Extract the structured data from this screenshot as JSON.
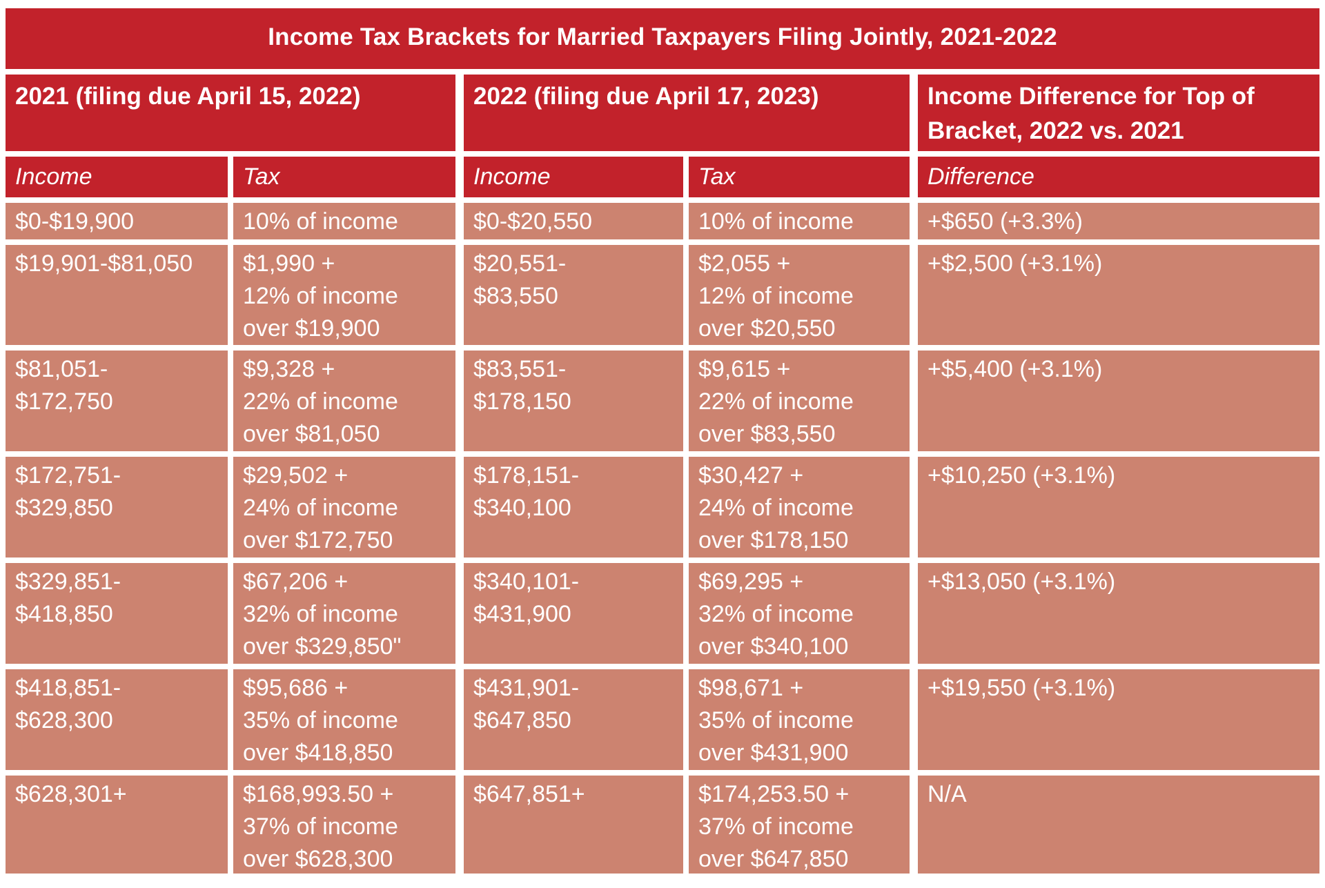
{
  "colors": {
    "header_red": "#C2222B",
    "cell_salmon": "#CC8370",
    "text_white": "#FFFFFF",
    "page_background": "#FFFFFF"
  },
  "chart_data": {
    "type": "table",
    "title": "Income Tax Brackets for Married Taxpayers Filing Jointly, 2021-2022",
    "column_groups": [
      {
        "label": "2021 (filing due April 15, 2022)",
        "span": 2
      },
      {
        "label": "2022 (filing due April 17, 2023)",
        "span": 2
      },
      {
        "label": "Income Difference for Top of Bracket, 2022 vs. 2021",
        "span": 1
      }
    ],
    "columns": [
      "Income",
      "Tax",
      "Income",
      "Tax",
      "Difference"
    ],
    "rows": [
      [
        "$0-$19,900",
        "10% of income",
        "$0-$20,550",
        "10% of income",
        "+$650 (+3.3%)"
      ],
      [
        "$19,901-$81,050",
        "$1,990 +\n12% of income\nover $19,900",
        "$20,551-\n$83,550",
        "$2,055 +\n12% of income\nover $20,550",
        "+$2,500 (+3.1%)"
      ],
      [
        "$81,051-\n$172,750",
        "$9,328 +\n22% of income\nover $81,050",
        "$83,551-\n$178,150",
        "$9,615 +\n22% of income\nover $83,550",
        "+$5,400 (+3.1%)"
      ],
      [
        "$172,751-\n$329,850",
        "$29,502 +\n24% of income\nover $172,750",
        "$178,151-\n$340,100",
        "$30,427 +\n24% of income\nover $178,150",
        "+$10,250 (+3.1%)"
      ],
      [
        "$329,851-\n$418,850",
        "$67,206 +\n32% of income\nover $329,850\"",
        "$340,101-\n$431,900",
        "$69,295 +\n32% of income\nover $340,100",
        "+$13,050 (+3.1%)"
      ],
      [
        "$418,851-\n$628,300",
        "$95,686 +\n35% of income\nover $418,850",
        "$431,901-\n$647,850",
        "$98,671 +\n35% of income\nover $431,900",
        "+$19,550 (+3.1%)"
      ],
      [
        "$628,301+",
        "$168,993.50 +\n37% of income\nover $628,300",
        "$647,851+",
        "$174,253.50 +\n37% of income\nover $647,850",
        "N/A"
      ]
    ]
  }
}
